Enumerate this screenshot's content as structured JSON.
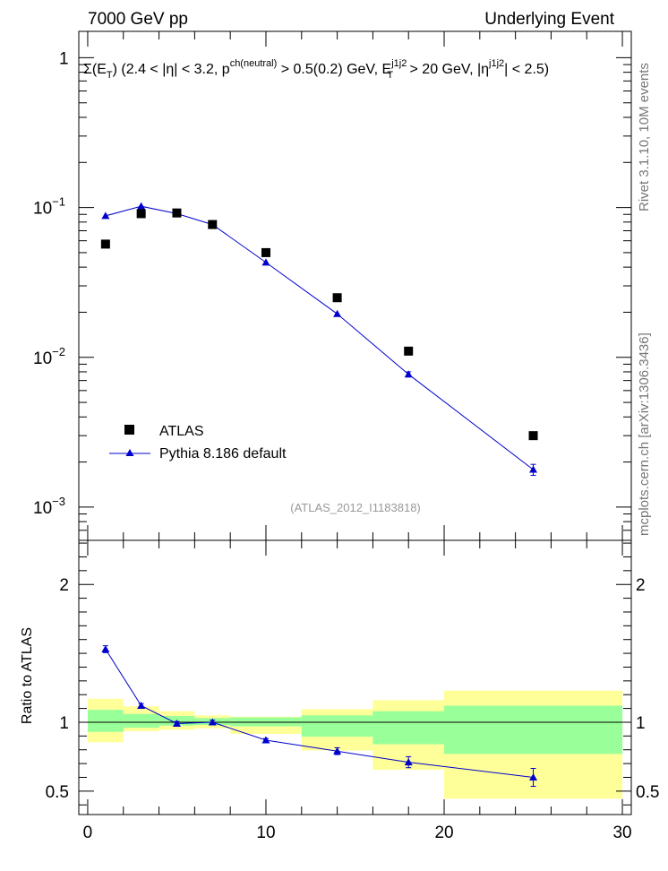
{
  "header": {
    "left": "7000 GeV pp",
    "right": "Underlying Event"
  },
  "side_labels": {
    "rivet": "Rivet 3.1.10, 10M events",
    "mcplots": "mcplots.cern.ch [arXiv:1306.3436]"
  },
  "chart_data": [
    {
      "type": "scatter",
      "title": "Σ(E_T) (2.4 < |η| < 3.2, p^ch(neutral) > 0.5(0.2) GeV, E_T^j1j2 > 20 GeV, |η^j1j2| < 2.5)",
      "title_parts": {
        "sigma": "Σ(E",
        "sub_T": "T",
        "cut1": ") (2.4 < |η| < 3.2, p",
        "sup_ch": "ch(neutral)",
        "cut2": " > 0.5(0.2) GeV, E",
        "sup_j": "j1j2",
        "sub_T2": "T",
        "cut3": " > 20 GeV, |η",
        "sup_j2": "j1j2",
        "cut4": "| < 2.5)"
      },
      "annotation": "(ATLAS_2012_I1183818)",
      "yscale": "log",
      "xlim": [
        -0.5,
        30.5
      ],
      "ylim": [
        0.0006,
        1.5
      ],
      "y_tick_labels": [
        {
          "base": "10",
          "exp": "−3",
          "value": 0.001
        },
        {
          "base": "10",
          "exp": "−2",
          "value": 0.01
        },
        {
          "base": "10",
          "exp": "−1",
          "value": 0.1
        },
        {
          "base": "1",
          "exp": "",
          "value": 1
        }
      ],
      "legend": {
        "placement": "lower-left",
        "entries": [
          "ATLAS",
          "Pythia 8.186 default"
        ]
      },
      "series": [
        {
          "name": "ATLAS",
          "marker": "square",
          "color": "#000000",
          "x": [
            1,
            3,
            5,
            7,
            10,
            14,
            18,
            25
          ],
          "y": [
            0.057,
            0.091,
            0.092,
            0.077,
            0.05,
            0.025,
            0.011,
            0.003
          ]
        },
        {
          "name": "Pythia 8.186 default",
          "marker": "triangle",
          "color": "#0000cc",
          "x": [
            1,
            3,
            5,
            7,
            10,
            14,
            18,
            25
          ],
          "y": [
            0.088,
            0.102,
            0.091,
            0.077,
            0.043,
            0.0195,
            0.0077,
            0.00178
          ],
          "yerr": [
            0.0,
            0.0,
            0.0,
            0.0,
            0.0,
            0.0,
            0.0003,
            0.00015
          ]
        }
      ]
    },
    {
      "type": "scatter",
      "ylabel": "Ratio to ATLAS",
      "xlim": [
        -0.5,
        30.5
      ],
      "ylim": [
        0.33,
        2.32
      ],
      "x_tick_labels": [
        "0",
        "10",
        "20",
        "30"
      ],
      "y_tick_labels": [
        "0.5",
        "1",
        "2"
      ],
      "x_ticks": [
        0,
        10,
        20,
        30
      ],
      "y_ticks": [
        0.5,
        1,
        2
      ],
      "reference_line": 1,
      "bands": [
        {
          "x0": 0,
          "x1": 2,
          "stat_lo": 0.93,
          "stat_hi": 1.09,
          "tot_lo": 0.855,
          "tot_hi": 1.17
        },
        {
          "x0": 2,
          "x1": 4,
          "stat_lo": 0.96,
          "stat_hi": 1.06,
          "tot_lo": 0.935,
          "tot_hi": 1.115
        },
        {
          "x0": 4,
          "x1": 6,
          "stat_lo": 0.975,
          "stat_hi": 1.045,
          "tot_lo": 0.945,
          "tot_hi": 1.08
        },
        {
          "x0": 6,
          "x1": 8,
          "stat_lo": 0.98,
          "stat_hi": 1.03,
          "tot_lo": 0.955,
          "tot_hi": 1.05
        },
        {
          "x0": 8,
          "x1": 12,
          "stat_lo": 0.97,
          "stat_hi": 1.035,
          "tot_lo": 0.915,
          "tot_hi": 1.04
        },
        {
          "x0": 12,
          "x1": 16,
          "stat_lo": 0.895,
          "stat_hi": 1.05,
          "tot_lo": 0.795,
          "tot_hi": 1.095
        },
        {
          "x0": 16,
          "x1": 20,
          "stat_lo": 0.84,
          "stat_hi": 1.08,
          "tot_lo": 0.655,
          "tot_hi": 1.16
        },
        {
          "x0": 20,
          "x1": 30,
          "stat_lo": 0.77,
          "stat_hi": 1.12,
          "tot_lo": 0.445,
          "tot_hi": 1.23
        }
      ],
      "series": [
        {
          "name": "Pythia 8.186 default",
          "marker": "triangle",
          "color": "#0000cc",
          "x": [
            1,
            3,
            5,
            7,
            10,
            14,
            18,
            25
          ],
          "y": [
            1.53,
            1.12,
            0.99,
            1.0,
            0.87,
            0.79,
            0.71,
            0.6
          ],
          "yerr": [
            0.025,
            0.015,
            0.015,
            0.015,
            0.012,
            0.025,
            0.04,
            0.065
          ]
        }
      ]
    }
  ],
  "colors": {
    "stat_band": "#99ff99",
    "total_band": "#ffff99",
    "data": "#000000",
    "mc": "#0000cc"
  }
}
